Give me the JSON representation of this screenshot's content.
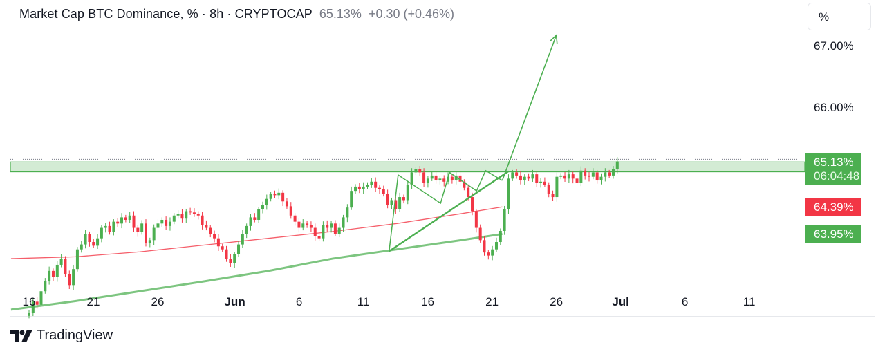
{
  "header": {
    "symbol": "Market Cap BTC Dominance, % · 8h · CRYPTOCAP",
    "price": "65.13%",
    "change": "+0.30 (+0.46%)"
  },
  "unit_button": "%",
  "brand": {
    "name": "TradingView",
    "icon": "tradingview-logo-icon"
  },
  "badges": {
    "last_price": "65.13%",
    "countdown": "06:04:48",
    "ma_red": "64.39%",
    "ma_green": "63.95%"
  },
  "colors": {
    "up": "#4caf50",
    "down": "#f23645",
    "ma_red": "#f23645",
    "ma_green": "#66bb6a",
    "zone": "#c8e6c9",
    "drawing": "#4caf50"
  },
  "chart_data": {
    "type": "candlestick",
    "title": "Market Cap BTC Dominance, % · 8h · CRYPTOCAP",
    "x_ticks": [
      {
        "label": "16",
        "date": "2024-05-16"
      },
      {
        "label": "21",
        "date": "2024-05-21"
      },
      {
        "label": "26",
        "date": "2024-05-26"
      },
      {
        "label": "Jun",
        "date": "2024-06-01",
        "bold": true
      },
      {
        "label": "6",
        "date": "2024-06-06"
      },
      {
        "label": "11",
        "date": "2024-06-11"
      },
      {
        "label": "16",
        "date": "2024-06-16"
      },
      {
        "label": "21",
        "date": "2024-06-21"
      },
      {
        "label": "26",
        "date": "2024-06-26"
      },
      {
        "label": "Jul",
        "date": "2024-07-01",
        "bold": true
      },
      {
        "label": "6",
        "date": "2024-07-06"
      },
      {
        "label": "11",
        "date": "2024-07-11"
      }
    ],
    "y_ticks": [
      "67.00%",
      "66.00%"
    ],
    "y_tick_values": [
      67.0,
      66.0
    ],
    "ylim": [
      62.6,
      67.5
    ],
    "candle_start": "2024-05-15",
    "candle_interval_days": 0.3333,
    "close": [
      62.67,
      62.85,
      62.8,
      63.02,
      63.18,
      63.35,
      63.25,
      63.45,
      63.55,
      63.3,
      63.12,
      63.38,
      63.7,
      63.78,
      63.95,
      63.82,
      63.76,
      63.88,
      64.05,
      64.08,
      63.98,
      64.15,
      64.12,
      64.22,
      64.18,
      64.25,
      64.05,
      63.98,
      64.12,
      63.8,
      63.85,
      64.05,
      64.12,
      64.18,
      64.08,
      64.15,
      64.25,
      64.28,
      64.2,
      64.32,
      64.3,
      64.28,
      64.25,
      64.1,
      64.05,
      63.95,
      63.88,
      63.75,
      63.7,
      63.55,
      63.48,
      63.62,
      63.78,
      63.95,
      64.08,
      64.22,
      64.18,
      64.35,
      64.42,
      64.52,
      64.6,
      64.58,
      64.62,
      64.48,
      64.4,
      64.25,
      64.15,
      64.05,
      64.12,
      64.1,
      64.05,
      63.92,
      63.88,
      64.1,
      64.05,
      64.12,
      63.95,
      64.05,
      64.22,
      64.38,
      64.65,
      64.72,
      64.68,
      64.72,
      64.75,
      64.8,
      64.7,
      64.68,
      64.6,
      64.42,
      64.5,
      64.35,
      64.55,
      64.5,
      64.75,
      64.95,
      65.0,
      64.95,
      64.78,
      64.85,
      64.9,
      64.82,
      64.85,
      64.8,
      64.88,
      64.82,
      64.9,
      64.8,
      64.7,
      64.55,
      64.32,
      64.05,
      63.85,
      63.65,
      63.6,
      63.7,
      63.82,
      64.0,
      64.35,
      64.85,
      64.95,
      64.9,
      64.82,
      64.88,
      64.85,
      64.92,
      64.78,
      64.8,
      64.75,
      64.6,
      64.55,
      64.88,
      64.9,
      64.85,
      64.92,
      64.85,
      64.78,
      64.98,
      64.9,
      64.88,
      64.95,
      64.82,
      64.88,
      64.95,
      64.9,
      65.0,
      65.13
    ],
    "series": [
      {
        "name": "",
        "kind": "line",
        "color": "#f23645",
        "x_days": [
          0,
          5,
          10,
          15,
          20,
          25,
          30,
          35,
          38.2
        ],
        "y": [
          63.55,
          63.58,
          63.66,
          63.77,
          63.88,
          63.99,
          64.12,
          64.28,
          64.39
        ]
      },
      {
        "name": "",
        "kind": "line",
        "color": "#66bb6a",
        "x_days": [
          0,
          5,
          10,
          15,
          20,
          25,
          30,
          35,
          38.2
        ],
        "y": [
          62.72,
          62.86,
          63.02,
          63.18,
          63.35,
          63.55,
          63.7,
          63.85,
          63.95
        ]
      }
    ],
    "horizontal_zone": {
      "from": 64.96,
      "to": 65.12
    },
    "price_line": 65.13,
    "drawings": [
      {
        "kind": "zigzag",
        "points_days": [
          [
            28.0,
            63.67
          ],
          [
            28.7,
            64.91
          ],
          [
            32.0,
            64.45
          ],
          [
            32.7,
            64.95
          ],
          [
            34.8,
            64.65
          ],
          [
            35.5,
            64.98
          ],
          [
            36.8,
            64.82
          ]
        ]
      },
      {
        "kind": "trendline",
        "points_days": [
          [
            28.0,
            63.67
          ],
          [
            37.3,
            64.97
          ]
        ]
      },
      {
        "kind": "arrow",
        "points_days": [
          [
            36.8,
            64.82
          ],
          [
            41.0,
            67.18
          ]
        ]
      }
    ]
  }
}
